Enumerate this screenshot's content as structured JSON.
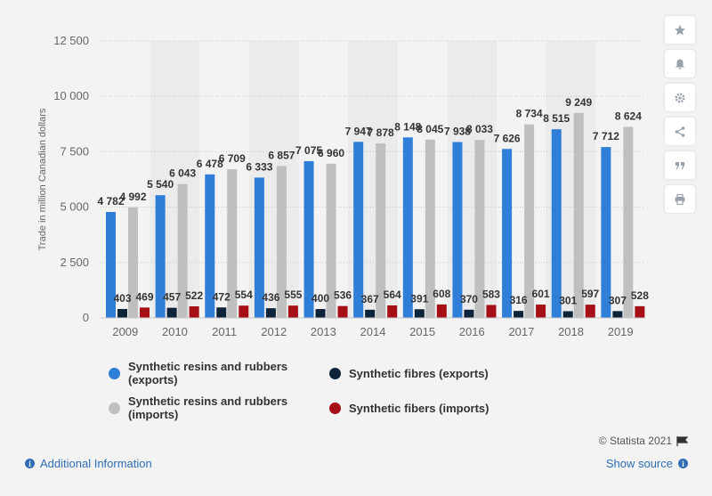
{
  "chart_data": {
    "type": "bar",
    "categories": [
      "2009",
      "2010",
      "2011",
      "2012",
      "2013",
      "2014",
      "2015",
      "2016",
      "2017",
      "2018",
      "2019"
    ],
    "series": [
      {
        "name": "Synthetic resins and rubbers (exports)",
        "color": "#2f7ed8",
        "values": [
          4782,
          5540,
          6478,
          6333,
          7075,
          7947,
          8148,
          7938,
          7626,
          8515,
          7712
        ],
        "labels": [
          "4 782",
          "5 540",
          "6 478",
          "6 333",
          "7 075",
          "7 947",
          "8 148",
          "7 938",
          "7 626",
          "8 515",
          "7 712"
        ]
      },
      {
        "name": "Synthetic resins and rubbers (imports)",
        "color": "#bfbfbf",
        "values": [
          4992,
          6043,
          6709,
          6857,
          6960,
          7878,
          8045,
          8033,
          8734,
          9249,
          8624
        ],
        "labels": [
          "4 992",
          "6 043",
          "6 709",
          "6 857",
          "6 960",
          "7 878",
          "8 045",
          "8 033",
          "8 734",
          "9 249",
          "8 624"
        ]
      },
      {
        "name": "Synthetic fibres (exports)",
        "color": "#0d233a",
        "values": [
          403,
          457,
          472,
          436,
          400,
          367,
          391,
          370,
          316,
          301,
          307
        ],
        "labels": [
          "403",
          "457",
          "472",
          "436",
          "400",
          "367",
          "391",
          "370",
          "316",
          "301",
          "307"
        ]
      },
      {
        "name": "Synthetic fibers (imports)",
        "color": "#a50f15",
        "values": [
          469,
          522,
          554,
          555,
          536,
          564,
          608,
          583,
          601,
          597,
          528
        ],
        "labels": [
          "469",
          "522",
          "554",
          "555",
          "536",
          "564",
          "608",
          "583",
          "601",
          "597",
          "528"
        ]
      }
    ],
    "ylabel": "Trade in million Canadian dollars",
    "ylim": [
      0,
      12500
    ],
    "yticks": [
      0,
      2500,
      5000,
      7500,
      10000,
      12500
    ],
    "ytick_labels": [
      "0",
      "2 500",
      "5 000",
      "7 500",
      "10 000",
      "12 500"
    ],
    "grid": true,
    "legend_position": "bottom"
  },
  "legend": {
    "items": [
      {
        "label": "Synthetic resins and rubbers (exports)",
        "color": "#2f7ed8"
      },
      {
        "label": "Synthetic fibres (exports)",
        "color": "#0d233a"
      },
      {
        "label": "Synthetic resins and rubbers (imports)",
        "color": "#bfbfbf"
      },
      {
        "label": "Synthetic fibers (imports)",
        "color": "#a50f15"
      }
    ]
  },
  "toolbar": {
    "icons": [
      "star-icon",
      "bell-icon",
      "gear-icon",
      "share-icon",
      "quote-icon",
      "print-icon"
    ]
  },
  "footer": {
    "additional_info": "Additional Information",
    "copyright": "© Statista 2021",
    "show_source": "Show source"
  }
}
